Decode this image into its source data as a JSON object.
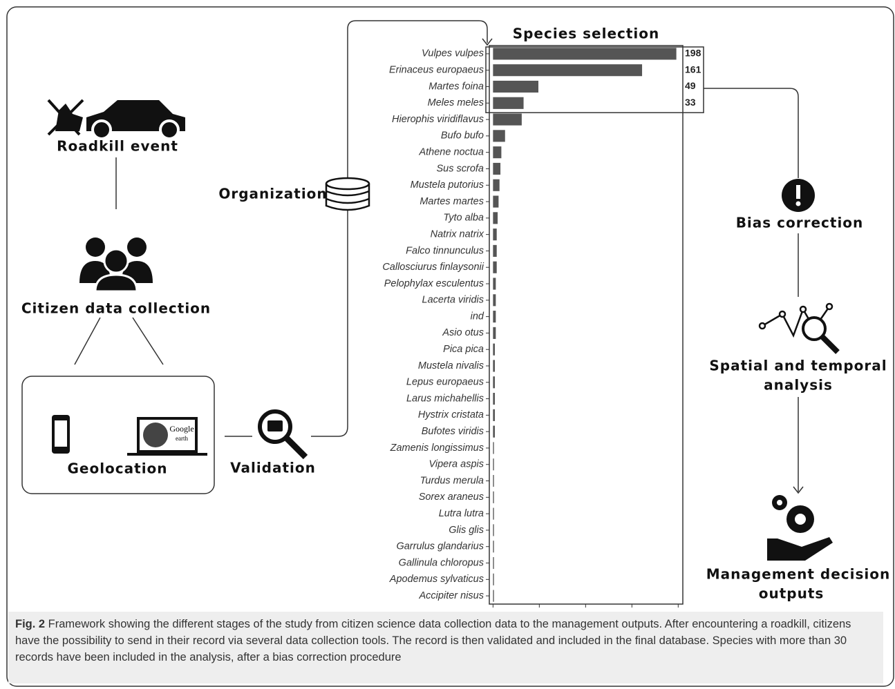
{
  "diagram": {
    "roadkill": "Roadkill event",
    "citizen": "Citizen data collection",
    "geolocation": "Geolocation",
    "google": "Google",
    "earth": "earth",
    "validation": "Validation",
    "organization": "Organization",
    "bias": "Bias correction",
    "analysis": [
      "Spatial and temporal",
      "analysis"
    ],
    "management": [
      "Management decision",
      "outputs"
    ]
  },
  "chart_data": {
    "type": "barh",
    "title": "Species selection",
    "categories": [
      "Vulpes vulpes",
      "Erinaceus europaeus",
      "Martes foina",
      "Meles meles",
      "Hierophis viridiflavus",
      "Bufo bufo",
      "Athene noctua",
      "Sus scrofa",
      "Mustela putorius",
      "Martes martes",
      "Tyto alba",
      "Natrix natrix",
      "Falco tinnunculus",
      "Callosciurus finlaysonii",
      "Pelophylax esculentus",
      "Lacerta viridis",
      "ind",
      "Asio otus",
      "Pica pica",
      "Mustela nivalis",
      "Lepus europaeus",
      "Larus michahellis",
      "Hystrix cristata",
      "Bufotes viridis",
      "Zamenis longissimus",
      "Vipera aspis",
      "Turdus merula",
      "Sorex araneus",
      "Lutra lutra",
      "Glis glis",
      "Garrulus glandarius",
      "Gallinula chloropus",
      "Apodemus sylvaticus",
      "Accipiter nisus"
    ],
    "values": [
      198,
      161,
      49,
      33,
      31,
      13,
      9,
      8,
      7,
      6,
      5,
      4,
      4,
      4,
      3,
      3,
      3,
      3,
      2,
      2,
      2,
      2,
      2,
      2,
      1,
      1,
      1,
      1,
      1,
      1,
      1,
      1,
      1,
      1
    ],
    "color": "#555555",
    "labeled_top": 4,
    "xlim": [
      -4,
      205
    ],
    "xticks": [
      0,
      50,
      100,
      150,
      200
    ]
  },
  "caption": {
    "label": "Fig. 2",
    "text": " Framework showing the different stages of the study from citizen science data collection data to the management outputs. After encountering a roadkill, citizens have the possibility to send in their record via several data collection tools. The record is then validated and included in the final database. Species with more than 30 records have been included in the analysis, after a bias correction procedure"
  }
}
